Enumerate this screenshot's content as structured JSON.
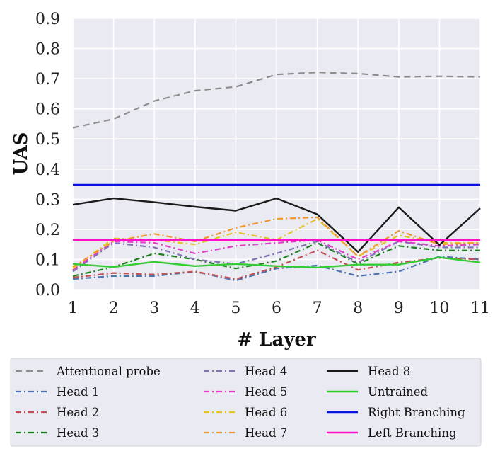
{
  "chart_data": {
    "type": "line",
    "xlabel": "# Layer",
    "ylabel": "UAS",
    "xlim": [
      1,
      11
    ],
    "ylim": [
      0.0,
      0.9
    ],
    "x": [
      1,
      2,
      3,
      4,
      5,
      6,
      7,
      8,
      9,
      10,
      11
    ],
    "x_ticks": [
      "1",
      "2",
      "3",
      "4",
      "5",
      "6",
      "7",
      "8",
      "9",
      "10",
      "11"
    ],
    "y_ticks": [
      "0.0",
      "0.1",
      "0.2",
      "0.3",
      "0.4",
      "0.5",
      "0.6",
      "0.7",
      "0.8",
      "0.9"
    ],
    "grid": true,
    "legend_position": "bottom",
    "background": "#EAEAF2",
    "series": [
      {
        "name": "Attentional probe",
        "color": "#8c8c8c",
        "style": "dashed",
        "values": [
          0.537,
          0.566,
          0.626,
          0.66,
          0.673,
          0.714,
          0.721,
          0.717,
          0.706,
          0.708,
          0.706
        ]
      },
      {
        "name": "Head 1",
        "color": "#4c72b0",
        "style": "dashdot",
        "values": [
          0.035,
          0.045,
          0.045,
          0.06,
          0.03,
          0.07,
          0.08,
          0.045,
          0.06,
          0.11,
          0.1
        ]
      },
      {
        "name": "Head 2",
        "color": "#c44e52",
        "style": "dashdot",
        "values": [
          0.04,
          0.055,
          0.05,
          0.06,
          0.035,
          0.075,
          0.13,
          0.065,
          0.09,
          0.105,
          0.1
        ]
      },
      {
        "name": "Head 3",
        "color": "#1a7f1a",
        "style": "dashdot",
        "values": [
          0.045,
          0.075,
          0.12,
          0.1,
          0.07,
          0.095,
          0.155,
          0.085,
          0.145,
          0.13,
          0.13
        ]
      },
      {
        "name": "Head 4",
        "color": "#8172b2",
        "style": "dashdot",
        "values": [
          0.06,
          0.155,
          0.14,
          0.1,
          0.085,
          0.12,
          0.16,
          0.09,
          0.16,
          0.14,
          0.14
        ]
      },
      {
        "name": "Head 5",
        "color": "#e040c8",
        "style": "dashdot",
        "values": [
          0.065,
          0.16,
          0.155,
          0.12,
          0.145,
          0.155,
          0.165,
          0.1,
          0.16,
          0.145,
          0.15
        ]
      },
      {
        "name": "Head 6",
        "color": "#e6c229",
        "style": "dashdot",
        "values": [
          0.07,
          0.17,
          0.165,
          0.15,
          0.19,
          0.165,
          0.235,
          0.11,
          0.18,
          0.155,
          0.155
        ]
      },
      {
        "name": "Head 7",
        "color": "#f0962c",
        "style": "dashdot",
        "values": [
          0.075,
          0.16,
          0.185,
          0.16,
          0.205,
          0.235,
          0.24,
          0.11,
          0.195,
          0.15,
          0.155
        ]
      },
      {
        "name": "Head 8",
        "color": "#1a1a1a",
        "style": "solid",
        "values": [
          0.282,
          0.303,
          0.29,
          0.275,
          0.262,
          0.303,
          0.25,
          0.125,
          0.273,
          0.148,
          0.27
        ]
      },
      {
        "name": "Untrained",
        "color": "#33cc33",
        "style": "solid",
        "values": [
          0.085,
          0.075,
          0.092,
          0.078,
          0.085,
          0.078,
          0.073,
          0.083,
          0.083,
          0.107,
          0.09
        ]
      },
      {
        "name": "Right Branching",
        "color": "#0a14e0",
        "style": "solid",
        "values": [
          0.348,
          0.348,
          0.348,
          0.348,
          0.348,
          0.348,
          0.348,
          0.348,
          0.348,
          0.348,
          0.348
        ]
      },
      {
        "name": "Left Branching",
        "color": "#ff10c8",
        "style": "solid",
        "values": [
          0.165,
          0.165,
          0.165,
          0.165,
          0.165,
          0.165,
          0.165,
          0.165,
          0.165,
          0.165,
          0.165
        ]
      }
    ]
  }
}
